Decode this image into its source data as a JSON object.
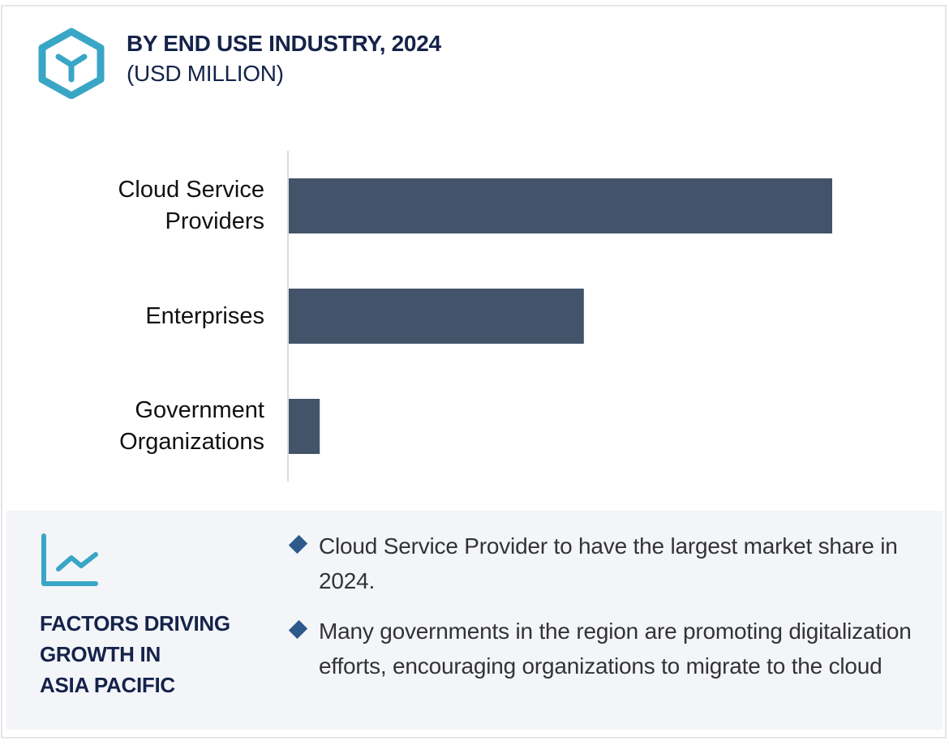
{
  "header": {
    "icon": "hexagon-y-icon",
    "title": "BY END USE INDUSTRY, 2024",
    "subtitle": "(USD MILLION)"
  },
  "colors": {
    "bar": "#435369",
    "title": "#15234a",
    "icon_accent": "#3aa6c5",
    "bullet": "#2d5a8a",
    "panel_bg": "#f3f5f9"
  },
  "chart_data": {
    "type": "bar",
    "orientation": "horizontal",
    "title": "BY END USE INDUSTRY, 2024",
    "subtitle": "(USD MILLION)",
    "xlabel": "",
    "ylabel": "",
    "categories": [
      "Cloud Service Providers",
      "Enterprises",
      "Government Organizations"
    ],
    "category_label_lines": [
      [
        "Cloud Service",
        "Providers"
      ],
      [
        "Enterprises"
      ],
      [
        "Government",
        "Organizations"
      ]
    ],
    "values": [
      100,
      54.3,
      5.7
    ],
    "value_note": "Relative bar lengths (largest = 100); no axis scale shown",
    "xlim": [
      0,
      100
    ],
    "grid": false,
    "legend": "none"
  },
  "factors": {
    "icon": "trend-line-chart-icon",
    "title_lines": [
      "FACTORS DRIVING",
      "GROWTH IN",
      "ASIA PACIFIC"
    ],
    "bullets": [
      "Cloud Service Provider to have the largest market share in 2024.",
      "Many governments in the region are promoting digitalization efforts, encouraging organizations to migrate to the cloud"
    ]
  }
}
